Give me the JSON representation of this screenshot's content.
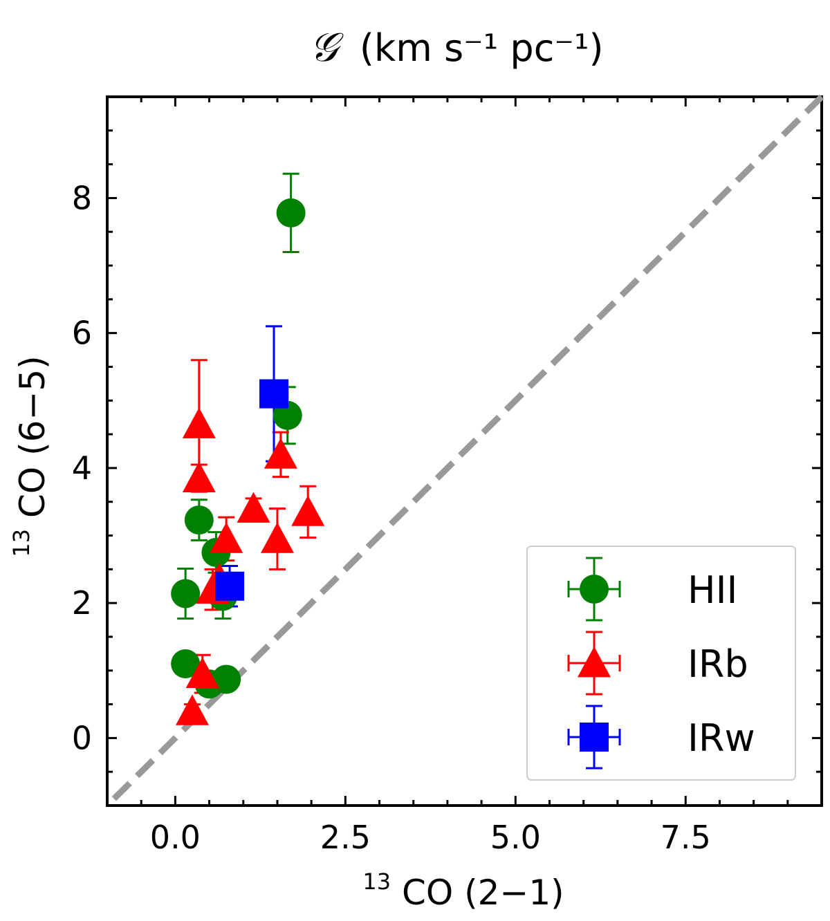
{
  "chart_data": {
    "type": "scatter",
    "title": {
      "symbol": "𝒢",
      "text": "(km s⁻¹ pc⁻¹)"
    },
    "xlabel": {
      "sup": "13",
      "text": "CO (2−1)"
    },
    "ylabel": {
      "sup": "13",
      "text": "CO (6−5)"
    },
    "xlim": [
      -1.0,
      9.5
    ],
    "ylim": [
      -1.0,
      9.5
    ],
    "xticks": [
      0.0,
      2.5,
      5.0,
      7.5
    ],
    "xtick_labels": [
      "0.0",
      "2.5",
      "5.0",
      "7.5"
    ],
    "yticks": [
      0,
      2,
      4,
      6,
      8
    ],
    "ytick_labels": [
      "0",
      "2",
      "4",
      "6",
      "8"
    ],
    "reference_line": {
      "style": "dashed",
      "color": "#999999",
      "slope": 1
    },
    "grid": false,
    "legend_position": "lower-right",
    "series": [
      {
        "name": "HII",
        "marker": "circle",
        "color": "#008000",
        "points": [
          {
            "x": 1.7,
            "y": 7.78,
            "yerr": 0.58
          },
          {
            "x": 1.65,
            "y": 4.78,
            "yerr": 0.42
          },
          {
            "x": 0.35,
            "y": 3.23,
            "yerr": 0.3
          },
          {
            "x": 0.6,
            "y": 2.75,
            "yerr": 0.3
          },
          {
            "x": 0.15,
            "y": 2.14,
            "yerr": 0.37
          },
          {
            "x": 0.7,
            "y": 2.1,
            "yerr": 0.33
          },
          {
            "x": 0.15,
            "y": 1.1,
            "yerr": 0.0
          },
          {
            "x": 0.5,
            "y": 0.8,
            "yerr": 0.0
          },
          {
            "x": 0.75,
            "y": 0.87,
            "yerr": 0.0
          }
        ]
      },
      {
        "name": "IRb",
        "marker": "triangle",
        "color": "#ff0000",
        "points": [
          {
            "x": 0.35,
            "y": 4.65,
            "yerr": 0.95
          },
          {
            "x": 0.35,
            "y": 3.85,
            "yerr": 0.2
          },
          {
            "x": 0.75,
            "y": 2.95,
            "yerr": 0.32
          },
          {
            "x": 0.65,
            "y": 2.35,
            "yerr": 0.3
          },
          {
            "x": 0.55,
            "y": 2.2,
            "yerr": 0.3
          },
          {
            "x": 1.15,
            "y": 3.4,
            "yerr": 0.15
          },
          {
            "x": 1.55,
            "y": 4.2,
            "yerr": 0.33
          },
          {
            "x": 1.5,
            "y": 2.95,
            "yerr": 0.45
          },
          {
            "x": 1.95,
            "y": 3.35,
            "yerr": 0.38
          },
          {
            "x": 0.4,
            "y": 0.95,
            "yerr": 0.28
          },
          {
            "x": 0.25,
            "y": 0.4,
            "yerr": 0.1
          }
        ]
      },
      {
        "name": "IRw",
        "marker": "square",
        "color": "#0000ff",
        "points": [
          {
            "x": 1.45,
            "y": 5.1,
            "yerr": 1.0
          },
          {
            "x": 0.8,
            "y": 2.25,
            "yerr": 0.3
          }
        ]
      }
    ]
  }
}
